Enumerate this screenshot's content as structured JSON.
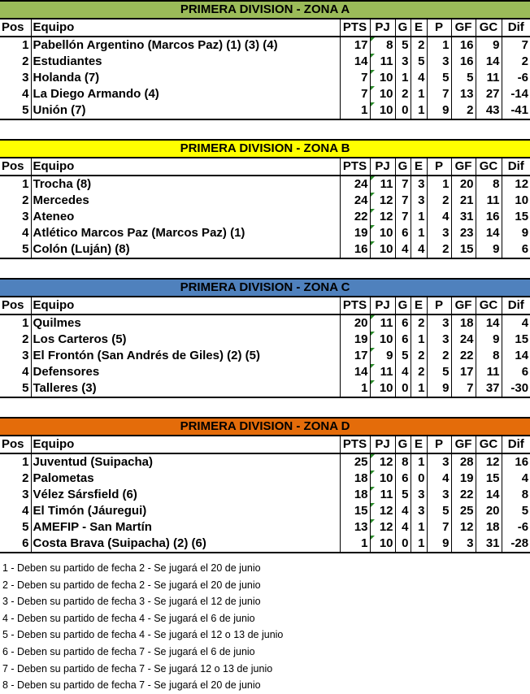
{
  "headers": [
    "Pos",
    "Equipo",
    "PTS",
    "PJ",
    "G",
    "E",
    "P",
    "GF",
    "GC",
    "Dif"
  ],
  "zones": [
    {
      "title": "PRIMERA DIVISION - ZONA A",
      "color": "#9bbb59",
      "rows": [
        [
          "1",
          "Pabellón Argentino (Marcos Paz) (1) (3) (4)",
          "17",
          "8",
          "5",
          "2",
          "1",
          "16",
          "9",
          "7"
        ],
        [
          "2",
          "Estudiantes",
          "14",
          "11",
          "3",
          "5",
          "3",
          "16",
          "14",
          "2"
        ],
        [
          "3",
          "Holanda (7)",
          "7",
          "10",
          "1",
          "4",
          "5",
          "5",
          "11",
          "-6"
        ],
        [
          "4",
          "La Diego Armando (4)",
          "7",
          "10",
          "2",
          "1",
          "7",
          "13",
          "27",
          "-14"
        ],
        [
          "5",
          "Unión (7)",
          "1",
          "10",
          "0",
          "1",
          "9",
          "2",
          "43",
          "-41"
        ]
      ]
    },
    {
      "title": "PRIMERA DIVISION - ZONA B",
      "color": "#ffff00",
      "rows": [
        [
          "1",
          "Trocha (8)",
          "24",
          "11",
          "7",
          "3",
          "1",
          "20",
          "8",
          "12"
        ],
        [
          "2",
          "Mercedes",
          "24",
          "12",
          "7",
          "3",
          "2",
          "21",
          "11",
          "10"
        ],
        [
          "3",
          "Ateneo",
          "22",
          "12",
          "7",
          "1",
          "4",
          "31",
          "16",
          "15"
        ],
        [
          "4",
          "Atlético Marcos Paz (Marcos Paz) (1)",
          "19",
          "10",
          "6",
          "1",
          "3",
          "23",
          "14",
          "9"
        ],
        [
          "5",
          "Colón (Luján) (8)",
          "16",
          "10",
          "4",
          "4",
          "2",
          "15",
          "9",
          "6"
        ]
      ]
    },
    {
      "title": "PRIMERA DIVISION - ZONA C",
      "color": "#4f81bd",
      "rows": [
        [
          "1",
          "Quilmes",
          "20",
          "11",
          "6",
          "2",
          "3",
          "18",
          "14",
          "4"
        ],
        [
          "2",
          "Los Carteros (5)",
          "19",
          "10",
          "6",
          "1",
          "3",
          "24",
          "9",
          "15"
        ],
        [
          "3",
          "El Frontón (San Andrés de Giles) (2) (5)",
          "17",
          "9",
          "5",
          "2",
          "2",
          "22",
          "8",
          "14"
        ],
        [
          "4",
          "Defensores",
          "14",
          "11",
          "4",
          "2",
          "5",
          "17",
          "11",
          "6"
        ],
        [
          "5",
          "Talleres (3)",
          "1",
          "10",
          "0",
          "1",
          "9",
          "7",
          "37",
          "-30"
        ]
      ]
    },
    {
      "title": "PRIMERA DIVISION - ZONA D",
      "color": "#e46c0a",
      "rows": [
        [
          "1",
          "Juventud (Suipacha)",
          "25",
          "12",
          "8",
          "1",
          "3",
          "28",
          "12",
          "16"
        ],
        [
          "2",
          "Palometas",
          "18",
          "10",
          "6",
          "0",
          "4",
          "19",
          "15",
          "4"
        ],
        [
          "3",
          "Vélez Sársfield (6)",
          "18",
          "11",
          "5",
          "3",
          "3",
          "22",
          "14",
          "8"
        ],
        [
          "4",
          "El Timón (Jáuregui)",
          "15",
          "12",
          "4",
          "3",
          "5",
          "25",
          "20",
          "5"
        ],
        [
          "5",
          "AMEFIP - San Martín",
          "13",
          "12",
          "4",
          "1",
          "7",
          "12",
          "18",
          "-6"
        ],
        [
          "6",
          "Costa Brava (Suipacha) (2) (6)",
          "1",
          "10",
          "0",
          "1",
          "9",
          "3",
          "31",
          "-28"
        ]
      ]
    }
  ],
  "notes": [
    "1 - Deben su partido de fecha 2 - Se jugará el 20 de junio",
    "2 - Deben su partido de fecha 2 - Se jugará el 20 de junio",
    "3 - Deben su partido de fecha 3 - Se jugará el 12 de junio",
    "4 - Deben su partido de fecha 4 - Se jugará el 6 de junio",
    "5 - Deben su partido de fecha 4 - Se jugará el 12 o 13 de junio",
    "6 - Deben su partido de fecha 7 - Se jugará el 6 de junio",
    "7 - Deben su partido de fecha 7 - Se jugará 12 o 13 de junio",
    "8 - Deben su partido de fecha 7 - Se jugará el 20 de junio"
  ]
}
